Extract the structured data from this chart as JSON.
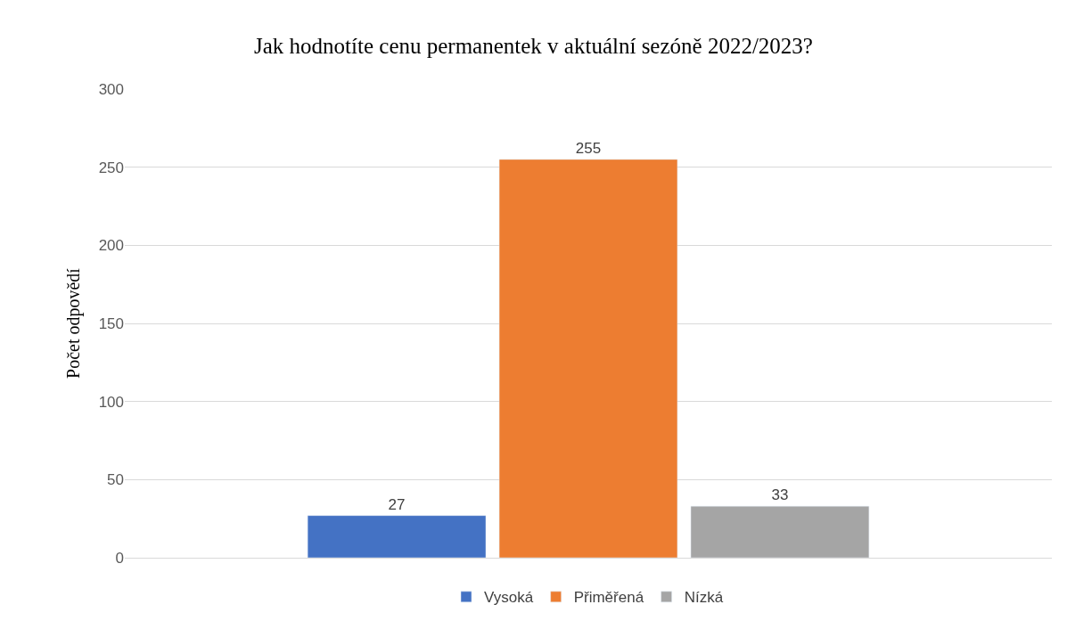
{
  "chart_data": {
    "type": "bar",
    "title": "Jak hodnotíte cenu permanentek v aktuální sezóně 2022/2023?",
    "ylabel": "Počet odpovědí",
    "categories": [
      null
    ],
    "series": [
      {
        "name": "Vysoká",
        "color": "#4472c4",
        "values": [
          27
        ]
      },
      {
        "name": "Přiměřená",
        "color": "#ed7d31",
        "values": [
          255
        ]
      },
      {
        "name": "Nízká",
        "color": "#a5a5a5",
        "values": [
          33
        ]
      }
    ],
    "ylim": [
      0,
      300
    ],
    "yticks": [
      0,
      50,
      100,
      150,
      200,
      250,
      300
    ],
    "grid": "y",
    "legend": "bottom",
    "data_labels": true
  }
}
